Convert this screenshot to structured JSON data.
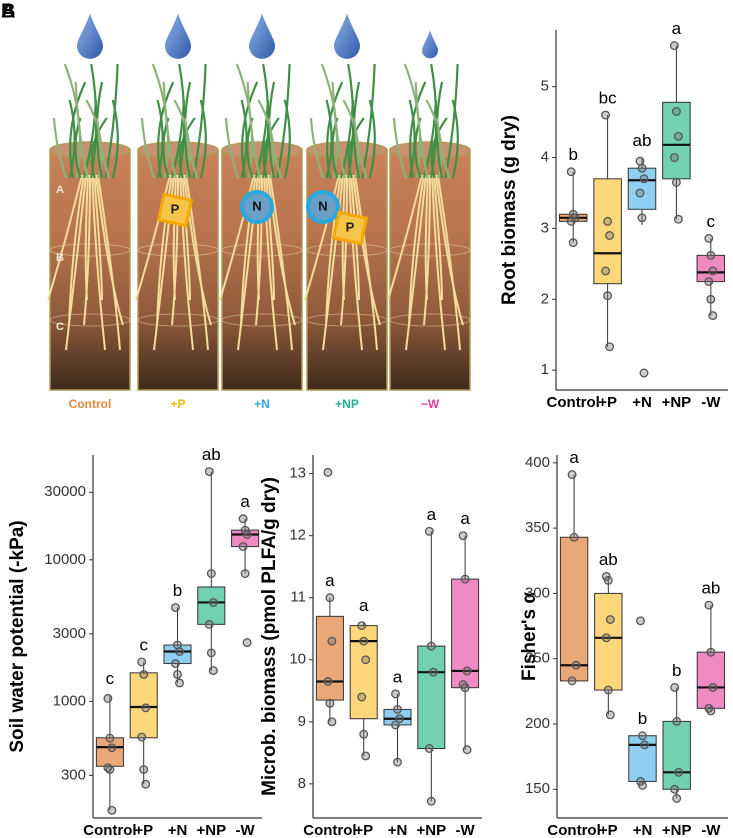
{
  "panel_labels": [
    "A",
    "B"
  ],
  "illustration": {
    "labels": [
      "Control",
      "+P",
      "+N",
      "+NP",
      "−W"
    ],
    "label_colors": [
      "#e08a3c",
      "#f5b800",
      "#29a8e0",
      "#1fb090",
      "#e0409a"
    ],
    "layers": [
      "A",
      "B",
      "C"
    ],
    "badges": [
      "P",
      "N"
    ]
  },
  "chart_data": [
    {
      "type": "box",
      "y_label": "Root biomass (g dry)",
      "categories": [
        "Control",
        "+P",
        "+N",
        "+NP",
        "-W"
      ],
      "colors": [
        "#eaa878",
        "#fdd77a",
        "#8fd0f2",
        "#72d1b2",
        "#ef8ac2"
      ],
      "ylim": [
        0.72,
        5.8
      ],
      "yticks": [
        1,
        2,
        3,
        4,
        5
      ],
      "boxes": [
        {
          "whisker_low": 2.8,
          "q1": 3.1,
          "median": 3.15,
          "q3": 3.2,
          "whisker_high": 3.8,
          "points": [
            3.8,
            3.2,
            3.15,
            3.1,
            2.8
          ],
          "letter": "b"
        },
        {
          "whisker_low": 1.33,
          "q1": 2.22,
          "median": 2.65,
          "q3": 3.7,
          "whisker_high": 4.6,
          "points": [
            4.6,
            3.1,
            2.9,
            2.4,
            2.05,
            1.33
          ],
          "letter": "bc"
        },
        {
          "whisker_low": 3.05,
          "q1": 3.27,
          "median": 3.68,
          "q3": 3.85,
          "whisker_high": 4.0,
          "points": [
            3.95,
            3.85,
            3.7,
            3.5,
            3.15,
            0.96
          ],
          "letter": "ab"
        },
        {
          "whisker_low": 3.13,
          "q1": 3.7,
          "median": 4.18,
          "q3": 4.78,
          "whisker_high": 5.58,
          "points": [
            5.58,
            4.65,
            4.3,
            4.0,
            3.65,
            3.13
          ],
          "letter": "a"
        },
        {
          "whisker_low": 1.77,
          "q1": 2.25,
          "median": 2.38,
          "q3": 2.62,
          "whisker_high": 2.86,
          "points": [
            2.86,
            2.62,
            2.4,
            2.25,
            2.0,
            1.77
          ],
          "letter": "c"
        }
      ]
    },
    {
      "type": "box",
      "y_label": "Soil water potential (-kPa)",
      "log_scale": true,
      "categories": [
        "Control",
        "+P",
        "+N",
        "+NP",
        "-W"
      ],
      "colors": [
        "#eaa878",
        "#fdd77a",
        "#8fd0f2",
        "#72d1b2",
        "#ef8ac2"
      ],
      "ylim": [
        150,
        55000
      ],
      "yticks": [
        300,
        1000,
        3000,
        10000,
        30000
      ],
      "boxes": [
        {
          "whisker_low": 170,
          "q1": 348,
          "median": 475,
          "q3": 553,
          "whisker_high": 1100,
          "points": [
            1050,
            550,
            470,
            340,
            330,
            170
          ],
          "letter": "c"
        },
        {
          "whisker_low": 260,
          "q1": 553,
          "median": 913,
          "q3": 1590,
          "whisker_high": 1900,
          "points": [
            1900,
            1550,
            900,
            560,
            330,
            260
          ],
          "letter": "c"
        },
        {
          "whisker_low": 1350,
          "q1": 1850,
          "median": 2250,
          "q3": 2500,
          "whisker_high": 4600,
          "points": [
            4600,
            2500,
            2250,
            1850,
            1550,
            1350
          ],
          "letter": "b"
        },
        {
          "whisker_low": 1650,
          "q1": 3500,
          "median": 5000,
          "q3": 6430,
          "whisker_high": 42000,
          "points": [
            42000,
            8000,
            5000,
            3500,
            2200,
            1650
          ],
          "letter": "ab"
        },
        {
          "whisker_low": 8000,
          "q1": 12400,
          "median": 15100,
          "q3": 16200,
          "whisker_high": 19500,
          "points": [
            19500,
            16200,
            15100,
            12400,
            8000,
            2600
          ],
          "letter": "a"
        }
      ]
    },
    {
      "type": "box",
      "y_label": "Microb. biomass (pmol PLFA/g dry)",
      "categories": [
        "Control",
        "+P",
        "+N",
        "+NP",
        "-W"
      ],
      "colors": [
        "#eaa878",
        "#fdd77a",
        "#8fd0f2",
        "#72d1b2",
        "#ef8ac2"
      ],
      "ylim": [
        7.45,
        13.3
      ],
      "yticks": [
        8,
        9,
        10,
        11,
        12,
        13
      ],
      "boxes": [
        {
          "whisker_low": 9.0,
          "q1": 9.35,
          "median": 9.65,
          "q3": 10.7,
          "whisker_high": 11.0,
          "points": [
            13.02,
            11.0,
            10.3,
            9.65,
            9.3,
            9.0
          ],
          "letter": "a"
        },
        {
          "whisker_low": 8.45,
          "q1": 9.05,
          "median": 10.3,
          "q3": 10.55,
          "whisker_high": 10.6,
          "points": [
            10.55,
            10.3,
            10.0,
            9.4,
            8.8,
            8.45
          ],
          "letter": "a"
        },
        {
          "whisker_low": 8.35,
          "q1": 8.95,
          "median": 9.05,
          "q3": 9.2,
          "whisker_high": 9.45,
          "points": [
            9.45,
            9.2,
            9.05,
            8.95,
            8.35
          ],
          "letter": "a"
        },
        {
          "whisker_low": 7.72,
          "q1": 8.57,
          "median": 9.8,
          "q3": 10.22,
          "whisker_high": 12.07,
          "points": [
            12.07,
            10.22,
            9.8,
            8.57,
            7.72
          ],
          "letter": "a"
        },
        {
          "whisker_low": 8.55,
          "q1": 9.55,
          "median": 9.82,
          "q3": 11.3,
          "whisker_high": 12.0,
          "points": [
            12.0,
            11.3,
            9.82,
            9.6,
            9.55,
            8.55
          ],
          "letter": "a"
        }
      ]
    },
    {
      "type": "box",
      "y_label": "Fisher's α",
      "categories": [
        "Control",
        "+P",
        "+N",
        "+NP",
        "-W"
      ],
      "colors": [
        "#eaa878",
        "#fdd77a",
        "#8fd0f2",
        "#72d1b2",
        "#ef8ac2"
      ],
      "ylim": [
        128,
        406
      ],
      "yticks": [
        150,
        200,
        250,
        300,
        350,
        400
      ],
      "boxes": [
        {
          "whisker_low": 233,
          "q1": 233,
          "median": 245,
          "q3": 343,
          "whisker_high": 391,
          "points": [
            391,
            343,
            245,
            233
          ],
          "letter": "a"
        },
        {
          "whisker_low": 207,
          "q1": 226,
          "median": 266,
          "q3": 300,
          "whisker_high": 313,
          "points": [
            313,
            310,
            280,
            266,
            226,
            207
          ],
          "letter": "ab"
        },
        {
          "whisker_low": 153,
          "q1": 156,
          "median": 184,
          "q3": 191,
          "whisker_high": 191,
          "points": [
            279,
            191,
            184,
            156,
            153
          ],
          "letter": "b"
        },
        {
          "whisker_low": 143,
          "q1": 150,
          "median": 163,
          "q3": 202,
          "whisker_high": 228,
          "points": [
            228,
            202,
            163,
            150,
            143
          ],
          "letter": "b"
        },
        {
          "whisker_low": 210,
          "q1": 212,
          "median": 228,
          "q3": 255,
          "whisker_high": 291,
          "points": [
            291,
            255,
            228,
            212,
            210
          ],
          "letter": "ab"
        }
      ]
    }
  ]
}
